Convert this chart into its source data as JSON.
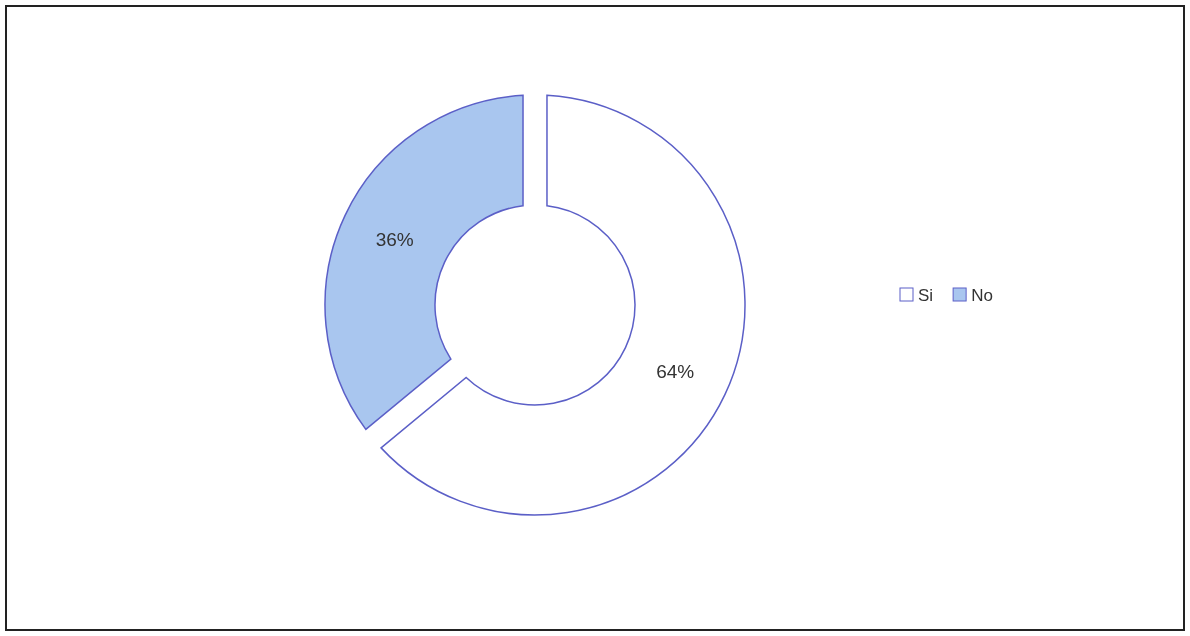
{
  "chart_data": {
    "type": "donut",
    "categories": [
      "Si",
      "No"
    ],
    "values": [
      64,
      36
    ],
    "colors": [
      "#ffffff",
      "#a9c6ef"
    ],
    "value_labels": [
      "64%",
      "36%"
    ],
    "legend": "right"
  }
}
